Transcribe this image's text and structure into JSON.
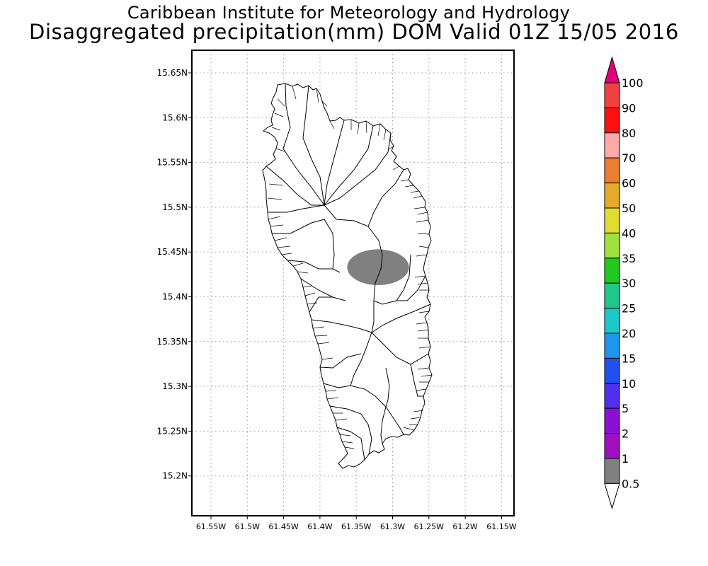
{
  "title": "Caribbean Institute for Meteorology and Hydrology",
  "subtitle": "Disaggregated precipitation(mm) DOM Valid 01Z 15/05 2016",
  "map": {
    "lon_ticks": [
      "61.55W",
      "61.5W",
      "61.45W",
      "61.4W",
      "61.35W",
      "61.3W",
      "61.25W",
      "61.2W",
      "61.15W"
    ],
    "lat_ticks": [
      "15.65N",
      "15.6N",
      "15.55N",
      "15.5N",
      "15.45N",
      "15.4N",
      "15.35N",
      "15.3N",
      "15.25N",
      "15.2N"
    ],
    "grid": "dotted",
    "precip_area": {
      "center_lon": -61.32,
      "center_lat": 15.433,
      "width_deg": 0.085,
      "height_deg": 0.04,
      "color": "#808080",
      "value_class": "0.5-1"
    }
  },
  "colorbar": {
    "levels": [
      {
        "label": "100",
        "color": "#e0007a"
      },
      {
        "label": "90",
        "color": "#f24040"
      },
      {
        "label": "80",
        "color": "#ff1010"
      },
      {
        "label": "70",
        "color": "#ffa8a8"
      },
      {
        "label": "60",
        "color": "#ee7e2e"
      },
      {
        "label": "50",
        "color": "#e6aa2a"
      },
      {
        "label": "40",
        "color": "#e0dc30"
      },
      {
        "label": "35",
        "color": "#a0e040"
      },
      {
        "label": "30",
        "color": "#20c820"
      },
      {
        "label": "25",
        "color": "#1ec88a"
      },
      {
        "label": "20",
        "color": "#1cc8c8"
      },
      {
        "label": "15",
        "color": "#1e96f0"
      },
      {
        "label": "10",
        "color": "#2050f0"
      },
      {
        "label": "5",
        "color": "#5030f0"
      },
      {
        "label": "2",
        "color": "#8a10d8"
      },
      {
        "label": "1",
        "color": "#a010c0"
      },
      {
        "label": "0.5",
        "color": "#808080"
      }
    ]
  }
}
